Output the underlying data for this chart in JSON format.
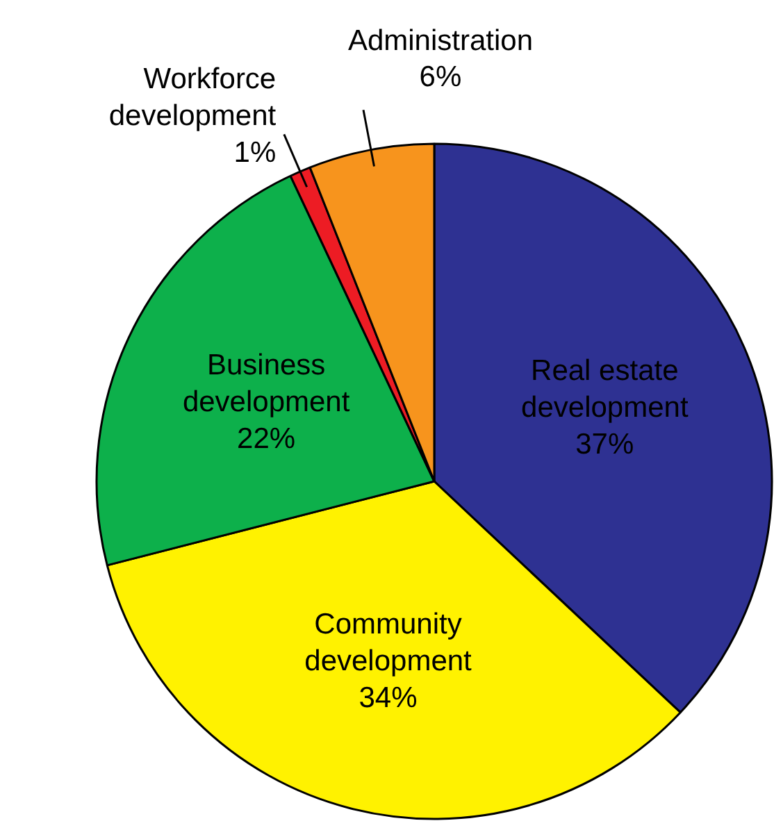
{
  "chart_data": {
    "type": "pie",
    "categories": [
      "Real estate development",
      "Community development",
      "Business development",
      "Workforce development",
      "Administration"
    ],
    "values": [
      37,
      34,
      22,
      1,
      6
    ],
    "colors": [
      "#2e3192",
      "#fff200",
      "#0db04b",
      "#ed1c24",
      "#f7941d"
    ],
    "value_labels": [
      "37%",
      "34%",
      "22%",
      "1%",
      "6%"
    ]
  }
}
